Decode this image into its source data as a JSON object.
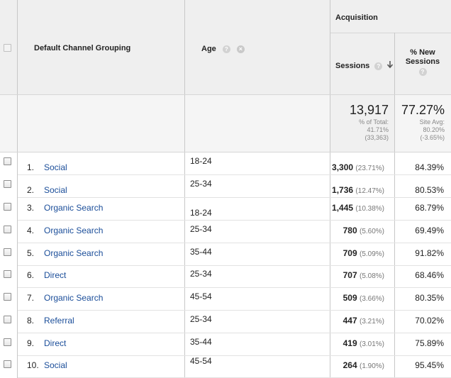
{
  "header": {
    "group_title": "Acquisition",
    "col_channel": "Default Channel Grouping",
    "col_age": "Age",
    "col_sessions": "Sessions",
    "col_new_sessions": "% New Sessions",
    "help_glyph": "?",
    "clear_glyph": "×"
  },
  "totals": {
    "sessions": "13,917",
    "sessions_sub1": "% of Total:",
    "sessions_sub2": "41.71%",
    "sessions_sub3": "(33,363)",
    "new_sessions": "77.27%",
    "new_sub1": "Site Avg:",
    "new_sub2": "80.20%",
    "new_sub3": "(-3.65%)"
  },
  "rows": [
    {
      "num": "1.",
      "channel": "Social",
      "age": "18-24",
      "sessions": "3,300",
      "sessions_pct": "(23.71%)",
      "new_sessions": "84.39%"
    },
    {
      "num": "2.",
      "channel": "Social",
      "age": "25-34",
      "sessions": "1,736",
      "sessions_pct": "(12.47%)",
      "new_sessions": "80.53%"
    },
    {
      "num": "3.",
      "channel": "Organic Search",
      "age": "18-24",
      "sessions": "1,445",
      "sessions_pct": "(10.38%)",
      "new_sessions": "68.79%"
    },
    {
      "num": "4.",
      "channel": "Organic Search",
      "age": "25-34",
      "sessions": "780",
      "sessions_pct": "(5.60%)",
      "new_sessions": "69.49%"
    },
    {
      "num": "5.",
      "channel": "Organic Search",
      "age": "35-44",
      "sessions": "709",
      "sessions_pct": "(5.09%)",
      "new_sessions": "91.82%"
    },
    {
      "num": "6.",
      "channel": "Direct",
      "age": "25-34",
      "sessions": "707",
      "sessions_pct": "(5.08%)",
      "new_sessions": "68.46%"
    },
    {
      "num": "7.",
      "channel": "Organic Search",
      "age": "45-54",
      "sessions": "509",
      "sessions_pct": "(3.66%)",
      "new_sessions": "80.35%"
    },
    {
      "num": "8.",
      "channel": "Referral",
      "age": "25-34",
      "sessions": "447",
      "sessions_pct": "(3.21%)",
      "new_sessions": "70.02%"
    },
    {
      "num": "9.",
      "channel": "Direct",
      "age": "35-44",
      "sessions": "419",
      "sessions_pct": "(3.01%)",
      "new_sessions": "75.89%"
    },
    {
      "num": "10.",
      "channel": "Social",
      "age": "45-54",
      "sessions": "264",
      "sessions_pct": "(1.90%)",
      "new_sessions": "95.45%"
    }
  ],
  "colors": {
    "link": "#1a4d99",
    "header_bg": "#efefef",
    "grid": "#c8c8c8"
  }
}
